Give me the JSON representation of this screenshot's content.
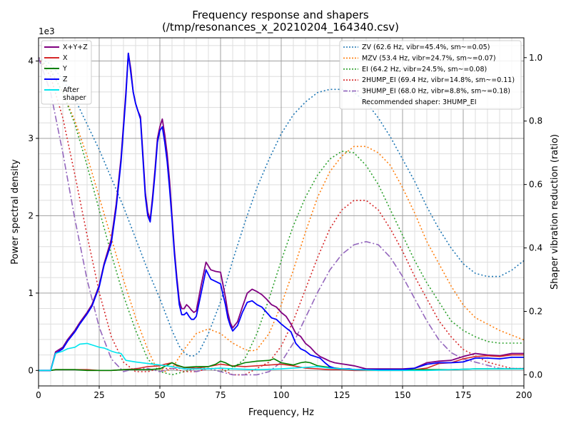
{
  "chart_data": {
    "type": "line",
    "title": "Frequency response and shapers",
    "subtitle": "(/tmp/resonances_x_20210204_164340.csv)",
    "xlabel": "Frequency, Hz",
    "ylabel": "Power spectral density",
    "y2label": "Shaper vibration reduction (ratio)",
    "y_offset_label": "1e3",
    "xlim": [
      0,
      200
    ],
    "ylim": [
      -0.2,
      4.3
    ],
    "y2lim": [
      -0.035,
      1.0625
    ],
    "xticks": [
      "0",
      "25",
      "50",
      "75",
      "100",
      "125",
      "150",
      "175",
      "200"
    ],
    "yticks": [
      "0",
      "1",
      "2",
      "3",
      "4"
    ],
    "y2ticks": [
      "0.0",
      "0.2",
      "0.4",
      "0.6",
      "0.8",
      "1.0"
    ],
    "grid": true,
    "legend_psd_placement": "top-left",
    "legend_shaper_placement": "top-right",
    "recommended_label": "Recommended shaper: 3HUMP_EI",
    "psd_series": [
      {
        "name": "X+Y+Z",
        "color": "#800080",
        "x": [
          0,
          5,
          7,
          10,
          12,
          15,
          17,
          20,
          22,
          25,
          27,
          30,
          32,
          34,
          36,
          37,
          38,
          39,
          40,
          41,
          42,
          43,
          44,
          45,
          46,
          47,
          48,
          49,
          50,
          51,
          52,
          53,
          54,
          55,
          56,
          57,
          58,
          59,
          60,
          61,
          62,
          63,
          64,
          65,
          67,
          69,
          71,
          73,
          75,
          77,
          78,
          79,
          80,
          82,
          84,
          86,
          88,
          90,
          92,
          94,
          96,
          98,
          100,
          102,
          104,
          106,
          108,
          110,
          112,
          114,
          116,
          118,
          120,
          122,
          124,
          126,
          128,
          130,
          135,
          140,
          145,
          150,
          155,
          160,
          165,
          170,
          175,
          180,
          185,
          190,
          195,
          200
        ],
        "y": [
          0,
          0,
          0.24,
          0.3,
          0.4,
          0.52,
          0.62,
          0.75,
          0.85,
          1.1,
          1.38,
          1.7,
          2.15,
          2.75,
          3.6,
          4.1,
          3.9,
          3.6,
          3.45,
          3.35,
          3.28,
          2.8,
          2.3,
          2.05,
          1.95,
          2.25,
          2.6,
          3.0,
          3.15,
          3.25,
          3.05,
          2.8,
          2.45,
          2.0,
          1.55,
          1.2,
          0.9,
          0.8,
          0.8,
          0.85,
          0.82,
          0.78,
          0.75,
          0.77,
          1.1,
          1.4,
          1.3,
          1.28,
          1.27,
          0.95,
          0.75,
          0.62,
          0.55,
          0.63,
          0.82,
          1.0,
          1.05,
          1.02,
          0.98,
          0.92,
          0.85,
          0.82,
          0.75,
          0.7,
          0.6,
          0.48,
          0.44,
          0.35,
          0.3,
          0.23,
          0.18,
          0.15,
          0.12,
          0.1,
          0.09,
          0.08,
          0.07,
          0.06,
          0.02,
          0.02,
          0.02,
          0.02,
          0.03,
          0.1,
          0.12,
          0.13,
          0.18,
          0.22,
          0.2,
          0.19,
          0.22,
          0.22
        ]
      },
      {
        "name": "X",
        "color": "#d62728",
        "x": [
          0,
          5,
          7,
          10,
          15,
          20,
          25,
          30,
          35,
          40,
          45,
          50,
          52,
          55,
          57,
          60,
          65,
          70,
          75,
          80,
          85,
          90,
          95,
          100,
          105,
          110,
          115,
          120,
          125,
          130,
          135,
          140,
          150,
          155,
          160,
          165,
          170,
          175,
          180,
          185,
          190,
          195,
          200
        ],
        "y": [
          0,
          0,
          0.01,
          0.01,
          0.01,
          0.01,
          0.0,
          0.0,
          0.01,
          0.02,
          0.05,
          0.06,
          0.08,
          0.1,
          0.06,
          0.04,
          0.03,
          0.05,
          0.08,
          0.06,
          0.05,
          0.06,
          0.07,
          0.08,
          0.06,
          0.03,
          0.02,
          0.01,
          0.01,
          0.0,
          0.0,
          0.0,
          0.0,
          0.01,
          0.03,
          0.09,
          0.1,
          0.15,
          0.18,
          0.19,
          0.18,
          0.2,
          0.2
        ]
      },
      {
        "name": "Y",
        "color": "#008000",
        "x": [
          0,
          5,
          7,
          10,
          15,
          20,
          25,
          30,
          35,
          40,
          45,
          50,
          55,
          57,
          60,
          65,
          70,
          73,
          75,
          77,
          80,
          85,
          90,
          95,
          97,
          100,
          105,
          108,
          110,
          112,
          115,
          120,
          125,
          130,
          140,
          150,
          160,
          170,
          180,
          190,
          200
        ],
        "y": [
          0,
          0,
          0.01,
          0.01,
          0.01,
          0.0,
          0.0,
          0.0,
          0.01,
          0.01,
          0.01,
          0.02,
          0.1,
          0.07,
          0.04,
          0.05,
          0.05,
          0.08,
          0.12,
          0.1,
          0.05,
          0.1,
          0.12,
          0.13,
          0.15,
          0.1,
          0.07,
          0.1,
          0.11,
          0.1,
          0.06,
          0.04,
          0.02,
          0.01,
          0.01,
          0.01,
          0.01,
          0.01,
          0.02,
          0.02,
          0.02
        ]
      },
      {
        "name": "Z",
        "color": "#0000ff",
        "x": [
          0,
          5,
          7,
          10,
          12,
          15,
          17,
          20,
          22,
          25,
          27,
          30,
          32,
          34,
          36,
          37,
          38,
          39,
          40,
          41,
          42,
          43,
          44,
          45,
          46,
          47,
          48,
          49,
          50,
          51,
          52,
          53,
          54,
          55,
          56,
          57,
          58,
          59,
          60,
          61,
          62,
          63,
          64,
          65,
          67,
          69,
          71,
          73,
          75,
          77,
          78,
          79,
          80,
          82,
          84,
          86,
          88,
          90,
          92,
          94,
          96,
          98,
          100,
          102,
          104,
          106,
          108,
          110,
          112,
          114,
          116,
          118,
          120,
          122,
          124,
          126,
          128,
          130,
          135,
          140,
          145,
          150,
          155,
          160,
          165,
          170,
          175,
          180,
          185,
          190,
          195,
          200
        ],
        "y": [
          0,
          0,
          0.22,
          0.28,
          0.38,
          0.5,
          0.6,
          0.73,
          0.83,
          1.08,
          1.36,
          1.65,
          2.1,
          2.7,
          3.55,
          4.1,
          3.85,
          3.6,
          3.45,
          3.35,
          3.25,
          2.75,
          2.25,
          2.0,
          1.92,
          2.2,
          2.55,
          2.95,
          3.1,
          3.15,
          2.95,
          2.7,
          2.35,
          1.95,
          1.5,
          1.15,
          0.85,
          0.72,
          0.72,
          0.75,
          0.7,
          0.66,
          0.66,
          0.7,
          1.0,
          1.3,
          1.18,
          1.15,
          1.12,
          0.85,
          0.68,
          0.58,
          0.51,
          0.58,
          0.75,
          0.88,
          0.9,
          0.85,
          0.82,
          0.75,
          0.68,
          0.66,
          0.6,
          0.55,
          0.5,
          0.35,
          0.28,
          0.25,
          0.2,
          0.18,
          0.16,
          0.1,
          0.05,
          0.03,
          0.02,
          0.02,
          0.02,
          0.01,
          0.01,
          0.01,
          0.01,
          0.01,
          0.03,
          0.08,
          0.1,
          0.1,
          0.11,
          0.16,
          0.16,
          0.15,
          0.17,
          0.17
        ]
      },
      {
        "name": "After\nshaper",
        "color": "#00e5ee",
        "x": [
          0,
          5,
          7,
          10,
          12,
          15,
          17,
          20,
          22,
          25,
          27,
          30,
          32,
          34,
          36,
          38,
          40,
          45,
          50,
          55,
          60,
          65,
          70,
          75,
          80,
          90,
          100,
          110,
          115,
          120,
          130,
          140,
          150,
          160,
          170,
          180,
          190,
          200
        ],
        "y": [
          0,
          0,
          0.22,
          0.25,
          0.28,
          0.3,
          0.34,
          0.35,
          0.33,
          0.3,
          0.29,
          0.25,
          0.23,
          0.22,
          0.13,
          0.12,
          0.11,
          0.09,
          0.07,
          0.05,
          0.02,
          0.02,
          0.02,
          0.03,
          0.02,
          0.01,
          0.02,
          0.04,
          0.05,
          0.03,
          0.01,
          0.0,
          0.0,
          0.0,
          0.01,
          0.02,
          0.02,
          0.02
        ]
      }
    ],
    "shaper_series": [
      {
        "name": "ZV (62.6 Hz, vibr=45.4%, sm~=0.05)",
        "color": "#1f77b4",
        "style": "dotted",
        "x": [
          0,
          5,
          10,
          15,
          20,
          25,
          30,
          35,
          40,
          45,
          50,
          55,
          58,
          60,
          62,
          64,
          66,
          70,
          75,
          80,
          85,
          90,
          95,
          100,
          105,
          110,
          115,
          120,
          125,
          130,
          135,
          140,
          145,
          150,
          155,
          160,
          165,
          170,
          175,
          180,
          185,
          190,
          195,
          200
        ],
        "y": [
          1.0,
          0.98,
          0.93,
          0.87,
          0.79,
          0.71,
          0.62,
          0.53,
          0.43,
          0.33,
          0.24,
          0.14,
          0.09,
          0.07,
          0.06,
          0.06,
          0.07,
          0.13,
          0.23,
          0.36,
          0.48,
          0.59,
          0.68,
          0.76,
          0.82,
          0.86,
          0.89,
          0.9,
          0.9,
          0.89,
          0.86,
          0.81,
          0.75,
          0.68,
          0.61,
          0.53,
          0.46,
          0.4,
          0.35,
          0.32,
          0.31,
          0.31,
          0.33,
          0.36
        ]
      },
      {
        "name": "MZV (53.4 Hz, vibr=24.7%, sm~=0.07)",
        "color": "#ff7f0e",
        "style": "dotted",
        "x": [
          0,
          5,
          10,
          15,
          20,
          25,
          30,
          35,
          40,
          45,
          48,
          52,
          55,
          60,
          65,
          70,
          75,
          80,
          85,
          88,
          90,
          95,
          100,
          105,
          110,
          115,
          120,
          125,
          130,
          135,
          140,
          145,
          150,
          155,
          160,
          165,
          170,
          175,
          180,
          185,
          190,
          195,
          200
        ],
        "y": [
          1.0,
          0.96,
          0.89,
          0.8,
          0.69,
          0.56,
          0.43,
          0.3,
          0.18,
          0.08,
          0.03,
          0.01,
          0.02,
          0.08,
          0.13,
          0.145,
          0.13,
          0.1,
          0.08,
          0.075,
          0.08,
          0.13,
          0.22,
          0.33,
          0.45,
          0.56,
          0.64,
          0.69,
          0.72,
          0.72,
          0.7,
          0.66,
          0.59,
          0.51,
          0.42,
          0.35,
          0.28,
          0.22,
          0.18,
          0.16,
          0.14,
          0.125,
          0.11
        ]
      },
      {
        "name": "EI (64.2 Hz, vibr=24.5%, sm~=0.08)",
        "color": "#2ca02c",
        "style": "dotted",
        "x": [
          0,
          5,
          10,
          15,
          20,
          25,
          30,
          35,
          40,
          45,
          50,
          55,
          60,
          65,
          70,
          75,
          80,
          85,
          90,
          95,
          100,
          105,
          110,
          115,
          120,
          125,
          130,
          135,
          140,
          145,
          150,
          155,
          160,
          165,
          170,
          175,
          180,
          185,
          190,
          195,
          200
        ],
        "y": [
          1.0,
          0.96,
          0.89,
          0.79,
          0.66,
          0.52,
          0.38,
          0.25,
          0.14,
          0.05,
          0.01,
          0.0,
          0.01,
          0.02,
          0.02,
          0.01,
          0.02,
          0.05,
          0.13,
          0.24,
          0.36,
          0.47,
          0.56,
          0.63,
          0.68,
          0.705,
          0.7,
          0.66,
          0.6,
          0.52,
          0.44,
          0.36,
          0.29,
          0.23,
          0.17,
          0.14,
          0.12,
          0.105,
          0.1,
          0.1,
          0.1
        ]
      },
      {
        "name": "2HUMP_EI (69.4 Hz, vibr=14.8%, sm~=0.11)",
        "color": "#d62728",
        "style": "dotted",
        "x": [
          0,
          5,
          10,
          15,
          20,
          25,
          30,
          35,
          40,
          45,
          50,
          55,
          60,
          65,
          70,
          75,
          80,
          85,
          90,
          95,
          100,
          105,
          110,
          115,
          120,
          125,
          130,
          135,
          140,
          145,
          150,
          155,
          160,
          165,
          170,
          175,
          180,
          185,
          190,
          195,
          200
        ],
        "y": [
          1.0,
          0.94,
          0.81,
          0.63,
          0.44,
          0.26,
          0.12,
          0.04,
          0.01,
          0.01,
          0.02,
          0.02,
          0.01,
          0.01,
          0.02,
          0.02,
          0.0,
          0.0,
          0.02,
          0.04,
          0.09,
          0.17,
          0.27,
          0.37,
          0.46,
          0.52,
          0.55,
          0.55,
          0.52,
          0.46,
          0.39,
          0.31,
          0.24,
          0.17,
          0.12,
          0.08,
          0.06,
          0.04,
          0.03,
          0.02,
          0.02
        ]
      },
      {
        "name": "3HUMP_EI (68.0 Hz, vibr=8.8%, sm~=0.18)",
        "color": "#9467bd",
        "style": "dashdot",
        "x": [
          0,
          5,
          10,
          15,
          20,
          25,
          30,
          35,
          40,
          45,
          50,
          55,
          60,
          65,
          70,
          75,
          80,
          85,
          90,
          95,
          100,
          105,
          110,
          115,
          120,
          125,
          130,
          135,
          140,
          145,
          150,
          155,
          160,
          165,
          170,
          175,
          180,
          185,
          190,
          195,
          200
        ],
        "y": [
          1.0,
          0.89,
          0.7,
          0.49,
          0.3,
          0.15,
          0.05,
          0.01,
          0.02,
          0.02,
          0.01,
          0.02,
          0.02,
          0.01,
          0.02,
          0.01,
          0.0,
          0.0,
          0.0,
          0.01,
          0.04,
          0.1,
          0.18,
          0.26,
          0.33,
          0.38,
          0.41,
          0.42,
          0.41,
          0.37,
          0.31,
          0.24,
          0.17,
          0.11,
          0.07,
          0.05,
          0.04,
          0.03,
          0.02,
          0.02,
          0.02
        ]
      }
    ]
  }
}
